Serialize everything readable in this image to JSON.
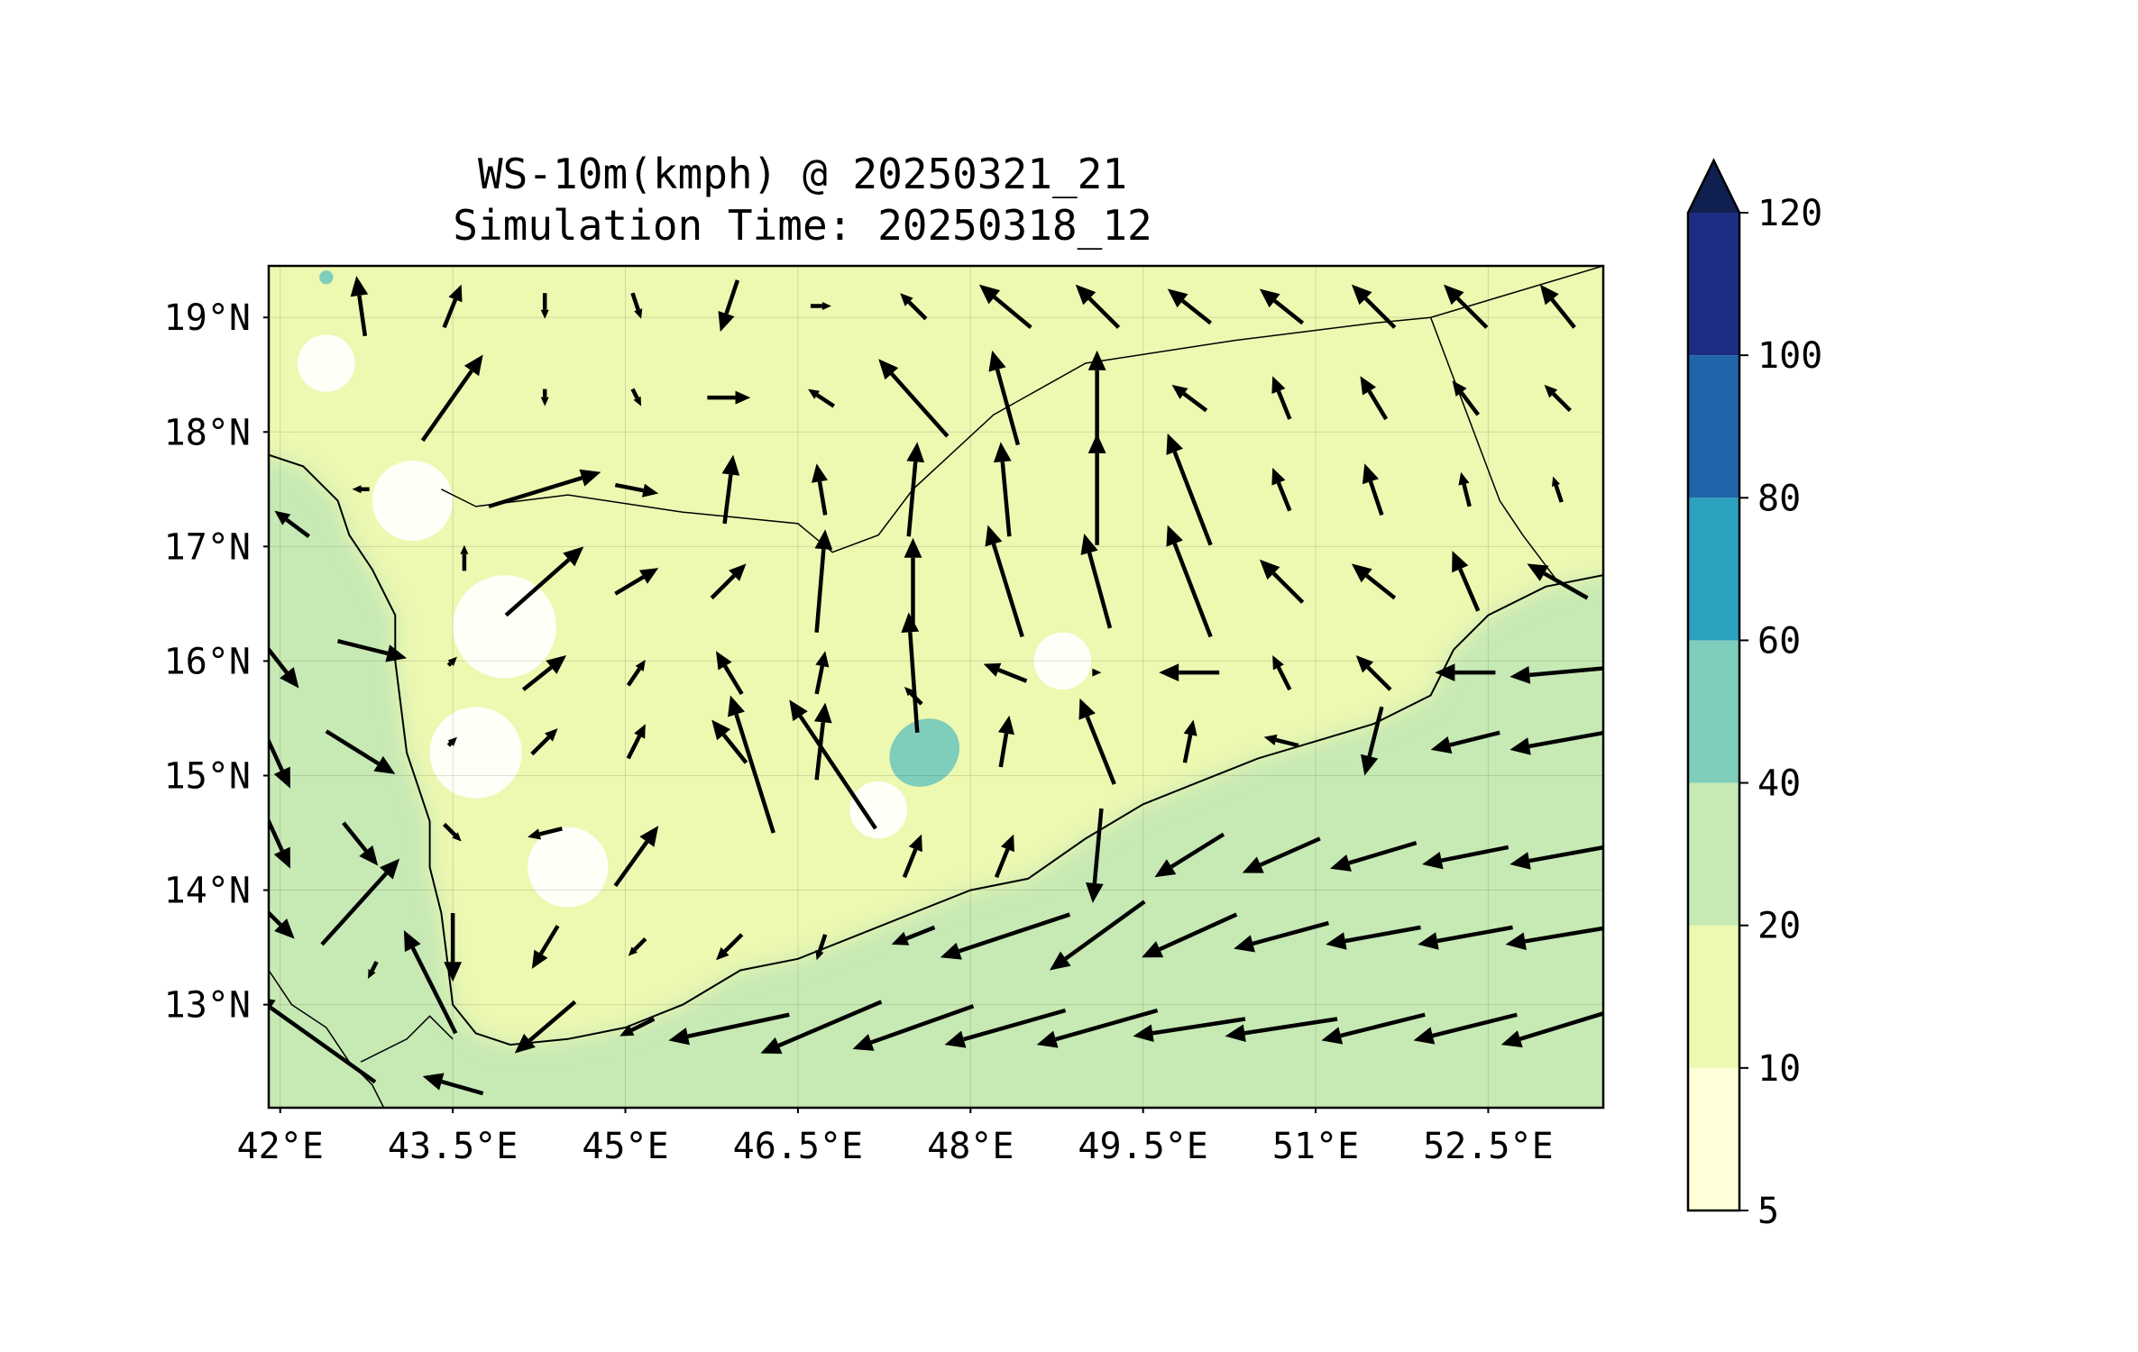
{
  "title": {
    "line1": "WS-10m(kmph) @ 20250321_21",
    "line2": "Simulation Time: 20250318_12"
  },
  "map": {
    "lon_range": [
      41.9,
      53.5
    ],
    "lat_range": [
      12.1,
      19.45
    ],
    "lon_ticks": [
      {
        "value": 42.0,
        "label": "42°E"
      },
      {
        "value": 43.5,
        "label": "43.5°E"
      },
      {
        "value": 45.0,
        "label": "45°E"
      },
      {
        "value": 46.5,
        "label": "46.5°E"
      },
      {
        "value": 48.0,
        "label": "48°E"
      },
      {
        "value": 49.5,
        "label": "49.5°E"
      },
      {
        "value": 51.0,
        "label": "51°E"
      },
      {
        "value": 52.5,
        "label": "52.5°E"
      }
    ],
    "lat_ticks": [
      {
        "value": 19,
        "label": "19°N"
      },
      {
        "value": 18,
        "label": "18°N"
      },
      {
        "value": 17,
        "label": "17°N"
      },
      {
        "value": 16,
        "label": "16°N"
      },
      {
        "value": 15,
        "label": "15°N"
      },
      {
        "value": 14,
        "label": "14°N"
      },
      {
        "value": 13,
        "label": "13°N"
      }
    ],
    "gridlines": true,
    "coastline": [
      [
        41.9,
        17.8
      ],
      [
        42.2,
        17.7
      ],
      [
        42.5,
        17.4
      ],
      [
        42.6,
        17.1
      ],
      [
        42.8,
        16.8
      ],
      [
        43.0,
        16.4
      ],
      [
        43.0,
        16.0
      ],
      [
        43.05,
        15.6
      ],
      [
        43.1,
        15.2
      ],
      [
        43.2,
        14.9
      ],
      [
        43.3,
        14.6
      ],
      [
        43.3,
        14.2
      ],
      [
        43.4,
        13.8
      ],
      [
        43.45,
        13.4
      ],
      [
        43.5,
        13.0
      ],
      [
        43.7,
        12.75
      ],
      [
        44.0,
        12.65
      ],
      [
        44.5,
        12.7
      ],
      [
        45.0,
        12.8
      ],
      [
        45.5,
        13.0
      ],
      [
        46.0,
        13.3
      ],
      [
        46.5,
        13.4
      ],
      [
        47.0,
        13.6
      ],
      [
        47.5,
        13.8
      ],
      [
        48.0,
        14.0
      ],
      [
        48.5,
        14.1
      ],
      [
        49.0,
        14.45
      ],
      [
        49.5,
        14.75
      ],
      [
        50.0,
        14.95
      ],
      [
        50.5,
        15.15
      ],
      [
        51.0,
        15.3
      ],
      [
        51.5,
        15.45
      ],
      [
        52.0,
        15.7
      ],
      [
        52.2,
        16.1
      ],
      [
        52.5,
        16.4
      ],
      [
        53.0,
        16.65
      ],
      [
        53.5,
        16.75
      ]
    ],
    "land_borders": [
      [
        [
          43.4,
          17.5
        ],
        [
          43.7,
          17.35
        ],
        [
          44.5,
          17.45
        ],
        [
          45.5,
          17.3
        ],
        [
          46.5,
          17.2
        ],
        [
          46.8,
          16.95
        ],
        [
          47.2,
          17.1
        ],
        [
          47.5,
          17.5
        ],
        [
          48.2,
          18.15
        ],
        [
          49.0,
          18.6
        ],
        [
          50.3,
          18.8
        ],
        [
          51.5,
          18.95
        ],
        [
          52.0,
          19.0
        ],
        [
          53.5,
          19.45
        ]
      ],
      [
        [
          52.0,
          19.0
        ],
        [
          52.6,
          17.4
        ],
        [
          52.8,
          17.1
        ],
        [
          53.1,
          16.7
        ]
      ],
      [
        [
          42.7,
          12.5
        ],
        [
          43.1,
          12.7
        ],
        [
          43.3,
          12.9
        ],
        [
          43.5,
          12.7
        ]
      ],
      [
        [
          41.9,
          13.3
        ],
        [
          42.1,
          13.0
        ],
        [
          42.4,
          12.8
        ],
        [
          42.6,
          12.5
        ],
        [
          42.8,
          12.3
        ],
        [
          42.9,
          12.1
        ]
      ]
    ],
    "calm_areas": [
      {
        "lon": 43.15,
        "lat": 17.4,
        "r": 0.35
      },
      {
        "lon": 43.95,
        "lat": 16.3,
        "r": 0.45
      },
      {
        "lon": 43.7,
        "lat": 15.2,
        "r": 0.4
      },
      {
        "lon": 44.5,
        "lat": 14.2,
        "r": 0.35
      },
      {
        "lon": 48.8,
        "lat": 16.0,
        "r": 0.25
      },
      {
        "lon": 47.2,
        "lat": 14.7,
        "r": 0.25
      },
      {
        "lon": 42.4,
        "lat": 18.6,
        "r": 0.25
      }
    ],
    "strong_areas": [
      {
        "lon": 47.6,
        "lat": 15.2,
        "rx": 0.32,
        "ry": 0.28
      },
      {
        "lon": 42.4,
        "lat": 19.35,
        "rx": 0.06,
        "ry": 0.06
      }
    ]
  },
  "colorbar": {
    "ticks": [
      "5",
      "10",
      "20",
      "40",
      "60",
      "80",
      "100",
      "120"
    ],
    "colors": [
      "#ffffd9",
      "#edf8b1",
      "#c7e9b4",
      "#7fcdbb",
      "#2ca1c0",
      "#2065aa",
      "#1d2d84",
      "#0f1f4f"
    ],
    "extend": "max"
  },
  "legend_items": [],
  "chart_data": {
    "type": "vector-field",
    "variable": "WS-10m",
    "units": "kmph",
    "valid_time": "20250321_21",
    "simulation_time": "20250318_12",
    "levels": [
      5,
      10,
      20,
      40,
      60,
      80,
      100,
      120
    ],
    "arrow_reference_kmph_per_deg": 60,
    "vectors": [
      {
        "lon": 42.7,
        "lat": 19.1,
        "u": -5,
        "v": 35
      },
      {
        "lon": 43.5,
        "lat": 19.1,
        "u": 10,
        "v": 25
      },
      {
        "lon": 44.3,
        "lat": 19.1,
        "u": 0,
        "v": -15
      },
      {
        "lon": 45.1,
        "lat": 19.1,
        "u": 5,
        "v": -15
      },
      {
        "lon": 45.9,
        "lat": 19.1,
        "u": -10,
        "v": -30
      },
      {
        "lon": 46.7,
        "lat": 19.1,
        "u": 12,
        "v": 0
      },
      {
        "lon": 47.5,
        "lat": 19.1,
        "u": -15,
        "v": 15
      },
      {
        "lon": 48.3,
        "lat": 19.1,
        "u": -30,
        "v": 25
      },
      {
        "lon": 49.1,
        "lat": 19.1,
        "u": -25,
        "v": 25
      },
      {
        "lon": 49.9,
        "lat": 19.1,
        "u": -25,
        "v": 20
      },
      {
        "lon": 50.7,
        "lat": 19.1,
        "u": -25,
        "v": 20
      },
      {
        "lon": 51.5,
        "lat": 19.1,
        "u": -25,
        "v": 25
      },
      {
        "lon": 52.3,
        "lat": 19.1,
        "u": -25,
        "v": 25
      },
      {
        "lon": 53.1,
        "lat": 19.1,
        "u": -20,
        "v": 25
      },
      {
        "lon": 43.5,
        "lat": 18.3,
        "u": 35,
        "v": 50
      },
      {
        "lon": 44.3,
        "lat": 18.3,
        "u": 0,
        "v": -10
      },
      {
        "lon": 45.1,
        "lat": 18.3,
        "u": 5,
        "v": -10
      },
      {
        "lon": 45.9,
        "lat": 18.3,
        "u": 25,
        "v": 0
      },
      {
        "lon": 46.7,
        "lat": 18.3,
        "u": -15,
        "v": 10
      },
      {
        "lon": 47.5,
        "lat": 18.3,
        "u": -40,
        "v": 45
      },
      {
        "lon": 48.3,
        "lat": 18.3,
        "u": -15,
        "v": 55
      },
      {
        "lon": 49.1,
        "lat": 18.3,
        "u": 0,
        "v": 55
      },
      {
        "lon": 49.9,
        "lat": 18.3,
        "u": -20,
        "v": 15
      },
      {
        "lon": 50.7,
        "lat": 18.3,
        "u": -10,
        "v": 25
      },
      {
        "lon": 51.5,
        "lat": 18.3,
        "u": -15,
        "v": 25
      },
      {
        "lon": 52.3,
        "lat": 18.3,
        "u": -15,
        "v": 20
      },
      {
        "lon": 53.1,
        "lat": 18.3,
        "u": -15,
        "v": 15
      },
      {
        "lon": 42.7,
        "lat": 17.5,
        "u": -10,
        "v": 0
      },
      {
        "lon": 44.3,
        "lat": 17.5,
        "u": 65,
        "v": 20
      },
      {
        "lon": 45.1,
        "lat": 17.5,
        "u": 25,
        "v": -5
      },
      {
        "lon": 45.9,
        "lat": 17.5,
        "u": 5,
        "v": 40
      },
      {
        "lon": 46.7,
        "lat": 17.5,
        "u": -5,
        "v": 30
      },
      {
        "lon": 47.5,
        "lat": 17.5,
        "u": 5,
        "v": 55
      },
      {
        "lon": 48.3,
        "lat": 17.5,
        "u": -5,
        "v": 55
      },
      {
        "lon": 49.1,
        "lat": 17.5,
        "u": 0,
        "v": 65
      },
      {
        "lon": 49.9,
        "lat": 17.5,
        "u": -25,
        "v": 65
      },
      {
        "lon": 50.7,
        "lat": 17.5,
        "u": -10,
        "v": 25
      },
      {
        "lon": 51.5,
        "lat": 17.5,
        "u": -10,
        "v": 30
      },
      {
        "lon": 52.3,
        "lat": 17.5,
        "u": -5,
        "v": 20
      },
      {
        "lon": 53.1,
        "lat": 17.5,
        "u": -5,
        "v": 15
      },
      {
        "lon": 42.1,
        "lat": 17.2,
        "u": -20,
        "v": 15
      },
      {
        "lon": 43.6,
        "lat": 16.9,
        "u": 0,
        "v": 15
      },
      {
        "lon": 44.3,
        "lat": 16.7,
        "u": 45,
        "v": 40
      },
      {
        "lon": 45.1,
        "lat": 16.7,
        "u": 25,
        "v": 15
      },
      {
        "lon": 45.9,
        "lat": 16.7,
        "u": 20,
        "v": 20
      },
      {
        "lon": 46.7,
        "lat": 16.7,
        "u": 5,
        "v": 60
      },
      {
        "lon": 47.5,
        "lat": 16.7,
        "u": 0,
        "v": 50
      },
      {
        "lon": 48.3,
        "lat": 16.7,
        "u": -20,
        "v": 65
      },
      {
        "lon": 49.1,
        "lat": 16.7,
        "u": -15,
        "v": 55
      },
      {
        "lon": 49.9,
        "lat": 16.7,
        "u": -25,
        "v": 65
      },
      {
        "lon": 50.7,
        "lat": 16.7,
        "u": -25,
        "v": 25
      },
      {
        "lon": 51.5,
        "lat": 16.7,
        "u": -25,
        "v": 20
      },
      {
        "lon": 52.3,
        "lat": 16.7,
        "u": -15,
        "v": 35
      },
      {
        "lon": 53.1,
        "lat": 16.7,
        "u": -35,
        "v": 20
      },
      {
        "lon": 41.9,
        "lat": 16.1,
        "u": 35,
        "v": -45
      },
      {
        "lon": 42.8,
        "lat": 16.1,
        "u": 40,
        "v": -10
      },
      {
        "lon": 43.5,
        "lat": 16.0,
        "u": 5,
        "v": 5
      },
      {
        "lon": 44.3,
        "lat": 15.9,
        "u": 25,
        "v": 20
      },
      {
        "lon": 45.1,
        "lat": 15.9,
        "u": 10,
        "v": 15
      },
      {
        "lon": 45.9,
        "lat": 15.9,
        "u": -15,
        "v": 25
      },
      {
        "lon": 46.7,
        "lat": 15.9,
        "u": 5,
        "v": 25
      },
      {
        "lon": 47.5,
        "lat": 15.9,
        "u": -5,
        "v": 70
      },
      {
        "lon": 48.3,
        "lat": 15.9,
        "u": -25,
        "v": 10
      },
      {
        "lon": 49.1,
        "lat": 15.9,
        "u": 5,
        "v": 0
      },
      {
        "lon": 49.9,
        "lat": 15.9,
        "u": -35,
        "v": 0
      },
      {
        "lon": 50.7,
        "lat": 15.9,
        "u": -10,
        "v": 20
      },
      {
        "lon": 51.5,
        "lat": 15.9,
        "u": -20,
        "v": 20
      },
      {
        "lon": 52.3,
        "lat": 15.9,
        "u": -35,
        "v": 0
      },
      {
        "lon": 53.1,
        "lat": 15.9,
        "u": -55,
        "v": -5
      },
      {
        "lon": 41.9,
        "lat": 15.3,
        "u": 25,
        "v": -55
      },
      {
        "lon": 42.7,
        "lat": 15.2,
        "u": 40,
        "v": -25
      },
      {
        "lon": 43.5,
        "lat": 15.3,
        "u": 5,
        "v": 5
      },
      {
        "lon": 44.3,
        "lat": 15.3,
        "u": 15,
        "v": 15
      },
      {
        "lon": 45.1,
        "lat": 15.3,
        "u": 10,
        "v": 20
      },
      {
        "lon": 45.9,
        "lat": 15.3,
        "u": -20,
        "v": 25
      },
      {
        "lon": 46.7,
        "lat": 15.3,
        "u": 5,
        "v": 45
      },
      {
        "lon": 47.5,
        "lat": 15.7,
        "u": -10,
        "v": 10
      },
      {
        "lon": 48.3,
        "lat": 15.3,
        "u": 5,
        "v": 30
      },
      {
        "lon": 49.1,
        "lat": 15.3,
        "u": -20,
        "v": 50
      },
      {
        "lon": 49.9,
        "lat": 15.3,
        "u": 5,
        "v": 25
      },
      {
        "lon": 50.7,
        "lat": 15.3,
        "u": -20,
        "v": 5
      },
      {
        "lon": 51.5,
        "lat": 15.3,
        "u": -10,
        "v": -40
      },
      {
        "lon": 52.3,
        "lat": 15.3,
        "u": -40,
        "v": -10
      },
      {
        "lon": 53.1,
        "lat": 15.3,
        "u": -55,
        "v": -10
      },
      {
        "lon": 46.1,
        "lat": 15.1,
        "u": -25,
        "v": 80
      },
      {
        "lon": 46.8,
        "lat": 15.1,
        "u": -50,
        "v": 75
      },
      {
        "lon": 41.9,
        "lat": 14.6,
        "u": 25,
        "v": -55
      },
      {
        "lon": 42.7,
        "lat": 14.4,
        "u": 20,
        "v": -25
      },
      {
        "lon": 42.7,
        "lat": 13.9,
        "u": 45,
        "v": 50
      },
      {
        "lon": 43.5,
        "lat": 14.5,
        "u": 10,
        "v": -10
      },
      {
        "lon": 44.3,
        "lat": 14.5,
        "u": -20,
        "v": -5
      },
      {
        "lon": 45.1,
        "lat": 14.3,
        "u": 25,
        "v": 35
      },
      {
        "lon": 47.5,
        "lat": 14.3,
        "u": 10,
        "v": 25
      },
      {
        "lon": 48.3,
        "lat": 14.3,
        "u": 10,
        "v": 25
      },
      {
        "lon": 49.1,
        "lat": 14.3,
        "u": -5,
        "v": -55
      },
      {
        "lon": 49.9,
        "lat": 14.3,
        "u": -40,
        "v": -25
      },
      {
        "lon": 50.7,
        "lat": 14.3,
        "u": -45,
        "v": -20
      },
      {
        "lon": 51.5,
        "lat": 14.3,
        "u": -50,
        "v": -15
      },
      {
        "lon": 52.3,
        "lat": 14.3,
        "u": -50,
        "v": -10
      },
      {
        "lon": 53.1,
        "lat": 14.3,
        "u": -55,
        "v": -10
      },
      {
        "lon": 41.9,
        "lat": 13.8,
        "u": 30,
        "v": -30
      },
      {
        "lon": 42.8,
        "lat": 13.3,
        "u": -5,
        "v": -10
      },
      {
        "lon": 43.5,
        "lat": 13.5,
        "u": 0,
        "v": -40
      },
      {
        "lon": 43.3,
        "lat": 13.2,
        "u": -30,
        "v": 60
      },
      {
        "lon": 44.3,
        "lat": 13.5,
        "u": -15,
        "v": -25
      },
      {
        "lon": 45.1,
        "lat": 13.5,
        "u": -10,
        "v": -10
      },
      {
        "lon": 45.9,
        "lat": 13.5,
        "u": -15,
        "v": -15
      },
      {
        "lon": 46.7,
        "lat": 13.5,
        "u": -5,
        "v": -15
      },
      {
        "lon": 47.5,
        "lat": 13.6,
        "u": -25,
        "v": -10
      },
      {
        "lon": 48.3,
        "lat": 13.6,
        "u": -75,
        "v": -25
      },
      {
        "lon": 49.1,
        "lat": 13.6,
        "u": -55,
        "v": -40
      },
      {
        "lon": 49.9,
        "lat": 13.6,
        "u": -55,
        "v": -25
      },
      {
        "lon": 50.7,
        "lat": 13.6,
        "u": -55,
        "v": -15
      },
      {
        "lon": 51.5,
        "lat": 13.6,
        "u": -55,
        "v": -10
      },
      {
        "lon": 52.3,
        "lat": 13.6,
        "u": -55,
        "v": -10
      },
      {
        "lon": 53.1,
        "lat": 13.6,
        "u": -60,
        "v": -10
      },
      {
        "lon": 42.3,
        "lat": 12.7,
        "u": -70,
        "v": 50
      },
      {
        "lon": 43.5,
        "lat": 12.3,
        "u": -35,
        "v": 10
      },
      {
        "lon": 44.3,
        "lat": 12.8,
        "u": -35,
        "v": -30
      },
      {
        "lon": 45.1,
        "lat": 12.8,
        "u": -20,
        "v": -10
      },
      {
        "lon": 45.9,
        "lat": 12.8,
        "u": -70,
        "v": -15
      },
      {
        "lon": 46.7,
        "lat": 12.8,
        "u": -70,
        "v": -30
      },
      {
        "lon": 47.5,
        "lat": 12.8,
        "u": -70,
        "v": -25
      },
      {
        "lon": 48.3,
        "lat": 12.8,
        "u": -70,
        "v": -20
      },
      {
        "lon": 49.1,
        "lat": 12.8,
        "u": -70,
        "v": -20
      },
      {
        "lon": 49.9,
        "lat": 12.8,
        "u": -65,
        "v": -10
      },
      {
        "lon": 50.7,
        "lat": 12.8,
        "u": -65,
        "v": -10
      },
      {
        "lon": 51.5,
        "lat": 12.8,
        "u": -60,
        "v": -15
      },
      {
        "lon": 52.3,
        "lat": 12.8,
        "u": -60,
        "v": -15
      },
      {
        "lon": 53.1,
        "lat": 12.8,
        "u": -65,
        "v": -20
      }
    ]
  }
}
